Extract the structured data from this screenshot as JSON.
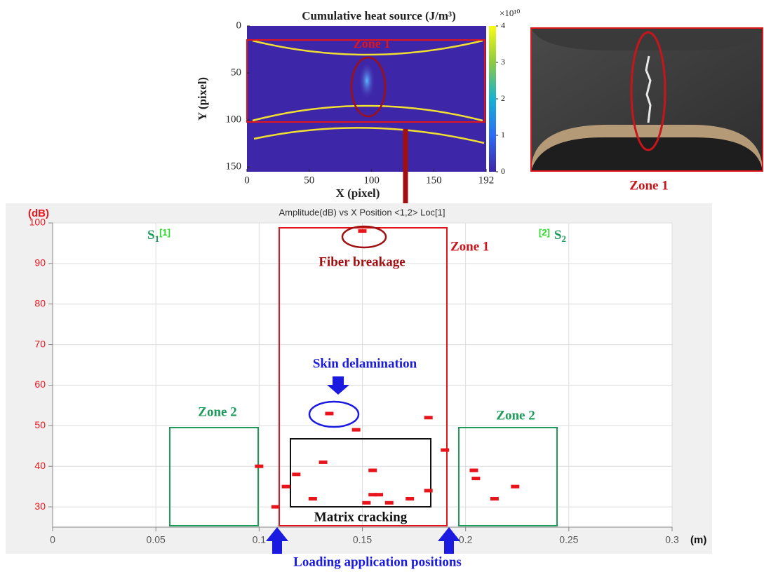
{
  "chart_data": [
    {
      "type": "heatmap",
      "title": "Cumulative heat source (J/m³)",
      "x_label": "X (pixel)",
      "y_label": "Y (pixel)",
      "xlim": [
        0,
        192
      ],
      "xticks": [
        0,
        50,
        100,
        150,
        192
      ],
      "ylim": [
        0,
        155
      ],
      "yticks": [
        0,
        50,
        100,
        150
      ],
      "colorbar_lim": [
        0,
        4
      ],
      "colorbar_ticks": [
        0,
        1,
        2,
        3,
        4
      ],
      "colorbar_multiplier": "×10¹⁰",
      "annotation": "Zone 1",
      "photo_caption": "Zone 1"
    },
    {
      "type": "scatter",
      "title": "Amplitude(dB) vs X Position <1,2> Loc[1]",
      "y_label": "(dB)",
      "x_label": "(m)",
      "xlim": [
        0,
        0.3
      ],
      "xticks": [
        0,
        0.05,
        0.1,
        0.15,
        0.2,
        0.25,
        0.3
      ],
      "ylim": [
        25,
        100
      ],
      "yticks": [
        30,
        40,
        50,
        60,
        70,
        80,
        90,
        100
      ],
      "grid": true,
      "color": "#e8141b",
      "x": [
        0.15,
        0.134,
        0.147,
        0.182,
        0.19,
        0.1,
        0.131,
        0.118,
        0.113,
        0.108,
        0.126,
        0.155,
        0.155,
        0.158,
        0.152,
        0.163,
        0.173,
        0.182,
        0.204,
        0.205,
        0.214,
        0.224
      ],
      "values": [
        98,
        53,
        49,
        52,
        44,
        40,
        41,
        38,
        35,
        30,
        32,
        39,
        33,
        33,
        31,
        31,
        32,
        34,
        39,
        37,
        32,
        35
      ],
      "sensors": [
        {
          "name": "S",
          "sub": "1",
          "tag": "[1]"
        },
        {
          "name": "S",
          "sub": "2",
          "tag": "[2]"
        }
      ],
      "annotations": {
        "zone1": "Zone 1",
        "fiber": "Fiber breakage",
        "skin": "Skin delamination",
        "zone2_left": "Zone 2",
        "zone2_right": "Zone 2",
        "matrix": "Matrix cracking",
        "loading": "Loading application positions"
      }
    }
  ]
}
